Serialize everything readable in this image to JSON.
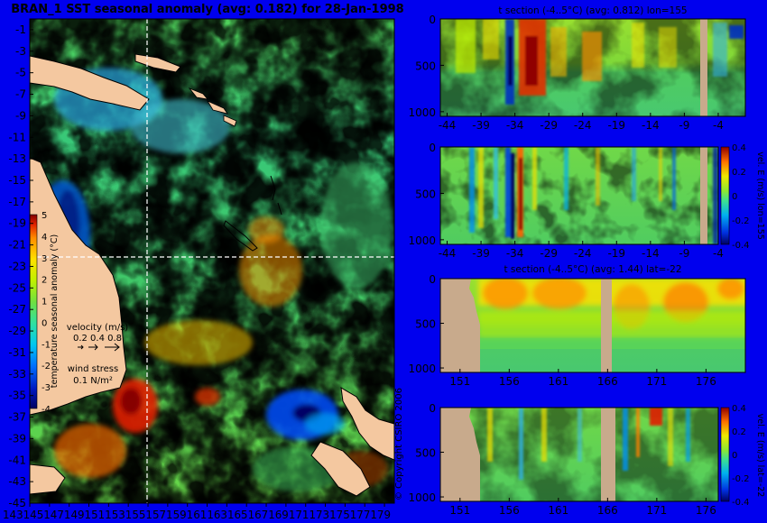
{
  "colors": {
    "background": "#0000ee",
    "land": "#f4c8a0",
    "topography": "#c8aa8c",
    "palette": [
      "#000060",
      "#0018c0",
      "#0070ff",
      "#00c8f0",
      "#30e0a0",
      "#70e040",
      "#c0f000",
      "#ffe000",
      "#ff8c00",
      "#e02000",
      "#800000"
    ]
  },
  "main_map": {
    "title": "BRAN_1 SST seasonal anomaly (avg: 0.182) for 28-Jan-1998",
    "y_ticks": [
      "-1",
      "-3",
      "-5",
      "-7",
      "-9",
      "-11",
      "-13",
      "-15",
      "-17",
      "-19",
      "-21",
      "-23",
      "-25",
      "-27",
      "-29",
      "-31",
      "-33",
      "-35",
      "-37",
      "-39",
      "-41",
      "-43",
      "-45"
    ],
    "x_tick_text": "143145147149151153155157159161163165167169171173175177179",
    "colorbar": {
      "label": "temperature seasonal anomaly (°C)",
      "ticks": [
        "5",
        "4",
        "3",
        "2",
        "1",
        "0",
        "-1",
        "-2",
        "-3",
        "-4"
      ],
      "range": [
        -4,
        5
      ]
    },
    "velocity_legend": {
      "title": "velocity (m/s)",
      "values": "0.2 0.4 0.8"
    },
    "wind_legend": {
      "title": "wind stress",
      "value": "0.1 N/m²"
    },
    "section_lines": {
      "lon": 155,
      "lat": -22
    },
    "copyright": "© Copyright CSIRO 2006"
  },
  "panels": [
    {
      "title": "t section (-4..5°C) (avg: 0.812) lon=155",
      "y_ticks": [
        "0",
        "500",
        "1000"
      ],
      "x_ticks": [
        "-44",
        "-39",
        "-34",
        "-29",
        "-24",
        "-19",
        "-14",
        "-9",
        "-4"
      ],
      "colorbar": null
    },
    {
      "title": "",
      "y_ticks": [
        "0",
        "500",
        "1000"
      ],
      "x_ticks": [
        "-44",
        "-39",
        "-34",
        "-29",
        "-24",
        "-19",
        "-14",
        "-9",
        "-4"
      ],
      "colorbar": {
        "label": "vel. E (m/s) lon=155",
        "ticks": [
          "0.4",
          "0.2",
          "0",
          "-0.2",
          "-0.4"
        ]
      }
    },
    {
      "title": "t section (-4..5°C) (avg: 1.44) lat=-22",
      "y_ticks": [
        "0",
        "500",
        "1000"
      ],
      "x_ticks": [
        "151",
        "156",
        "161",
        "166",
        "171",
        "176"
      ],
      "colorbar": null
    },
    {
      "title": "",
      "y_ticks": [
        "0",
        "500",
        "1000"
      ],
      "x_ticks": [
        "151",
        "156",
        "161",
        "166",
        "171",
        "176"
      ],
      "colorbar": {
        "label": "vel. E (m/s) lat=-22",
        "ticks": [
          "0.4",
          "0.2",
          "0",
          "-0.2",
          "-0.4"
        ]
      }
    }
  ],
  "chart_data": [
    {
      "type": "heatmap",
      "title": "BRAN_1 SST seasonal anomaly (avg: 0.182) for 28-Jan-1998",
      "xlabel": "",
      "ylabel": "",
      "xlim": [
        143,
        180
      ],
      "ylim": [
        -45,
        0
      ],
      "colorbar_range": [
        -4,
        5
      ],
      "average": 0.182
    },
    {
      "type": "heatmap",
      "title": "t section (-4..5°C) (avg: 0.812) lon=155",
      "xlim": [
        -45,
        0
      ],
      "ylim": [
        1050,
        0
      ],
      "average": 0.812
    },
    {
      "type": "heatmap",
      "title": "",
      "xlim": [
        -45,
        0
      ],
      "ylim": [
        1050,
        0
      ],
      "colorbar_label": "vel. E (m/s) lon=155",
      "colorbar_range": [
        -0.4,
        0.4
      ]
    },
    {
      "type": "heatmap",
      "title": "t section (-4..5°C) (avg: 1.44) lat=-22",
      "xlim": [
        149,
        180
      ],
      "ylim": [
        1050,
        0
      ],
      "average": 1.44
    },
    {
      "type": "heatmap",
      "title": "",
      "xlim": [
        149,
        180
      ],
      "ylim": [
        1050,
        0
      ],
      "colorbar_label": "vel. E (m/s) lat=-22",
      "colorbar_range": [
        -0.4,
        0.4
      ]
    }
  ]
}
